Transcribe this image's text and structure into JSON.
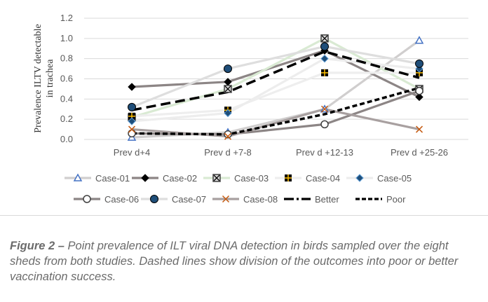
{
  "chart_data": {
    "type": "line",
    "ylabel": "Prevalence ILTV detectable in trachea",
    "categories": [
      "Prev d+4",
      "Prev d +7-8",
      "Prev d +12-13",
      "Prev d +25-26"
    ],
    "yticks": [
      "0.0",
      "0.2",
      "0.4",
      "0.6",
      "0.8",
      "1.0",
      "1.2"
    ],
    "ylim": [
      0,
      1.2
    ],
    "grid": true,
    "legend_placement": "bottom",
    "series": [
      {
        "name": "Case-01",
        "values": [
          0.02,
          0.07,
          0.3,
          0.98
        ],
        "line": "#d0cece",
        "marker": "triangle",
        "markerColor": "#4472c4"
      },
      {
        "name": "Case-02",
        "values": [
          0.52,
          0.57,
          0.88,
          0.42
        ],
        "line": "#8c8585",
        "marker": "diamond",
        "markerColor": "#000000"
      },
      {
        "name": "Case-03",
        "values": [
          0.22,
          0.5,
          1.0,
          0.5
        ],
        "line": "#d9ead3",
        "marker": "boxx",
        "markerColor": "#404040"
      },
      {
        "name": "Case-04",
        "values": [
          0.23,
          0.29,
          0.66,
          0.66
        ],
        "line": "#eeeeee",
        "marker": "boxplus",
        "markerColor": "#ffc000"
      },
      {
        "name": "Case-05",
        "values": [
          0.18,
          0.26,
          0.8,
          0.7
        ],
        "line": "#ededed",
        "marker": "diamond",
        "markerColor": "#1f4e79"
      },
      {
        "name": "Case-06",
        "values": [
          0.06,
          0.05,
          0.15,
          0.48
        ],
        "line": "#8c8585",
        "marker": "opencircle",
        "markerColor": "#404040"
      },
      {
        "name": "Case-07",
        "values": [
          0.32,
          0.7,
          0.92,
          0.75
        ],
        "line": "#dedede",
        "marker": "circle",
        "markerColor": "#1f4e79"
      },
      {
        "name": "Case-08",
        "values": [
          0.1,
          0.03,
          0.3,
          0.1
        ],
        "line": "#a8a0a0",
        "marker": "x",
        "markerColor": "#c55a11"
      },
      {
        "name": "Better",
        "values": [
          0.29,
          0.47,
          0.87,
          0.61
        ],
        "line": "#000000",
        "dash": "long"
      },
      {
        "name": "Poor",
        "values": [
          0.06,
          0.05,
          0.25,
          0.51
        ],
        "line": "#000000",
        "dash": "short"
      }
    ]
  },
  "caption": {
    "label": "Figure 2 –",
    "text": " Point prevalence of ILT viral DNA detection in birds sampled over the eight sheds from both studies. Dashed lines show division of the outcomes into poor or better vaccination success."
  }
}
